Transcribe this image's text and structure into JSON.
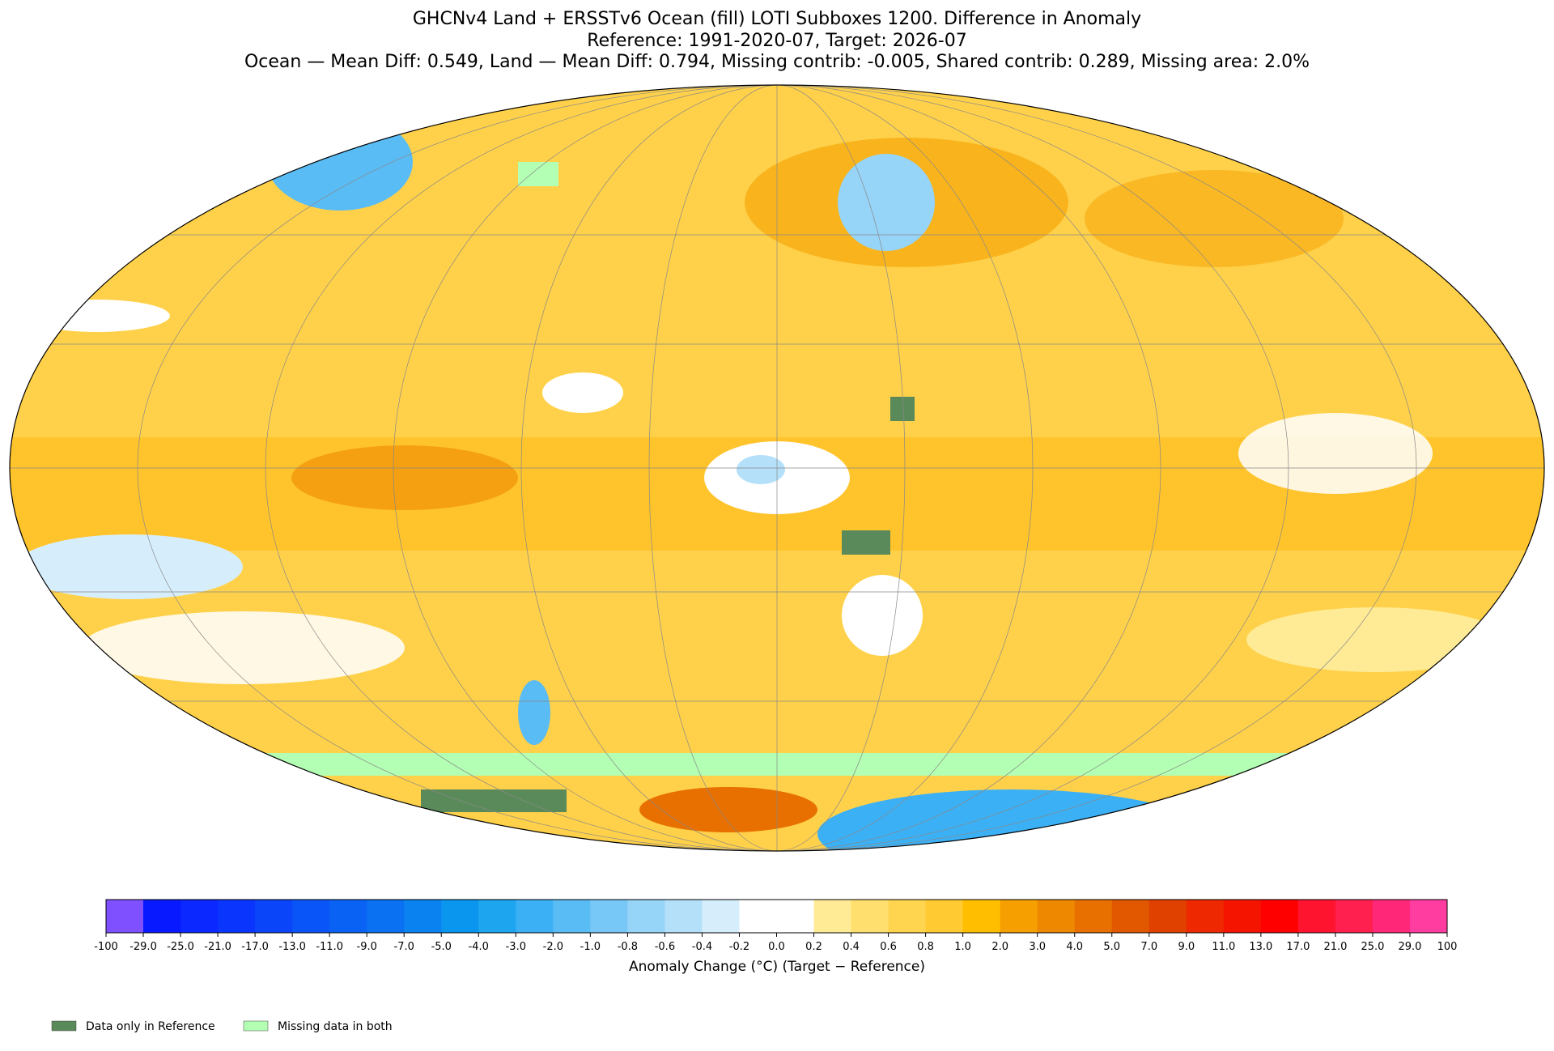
{
  "header": {
    "lines": [
      "GHCNv4 Land + ERSSTv6 Ocean (fill) LOTI Subboxes 1200. Difference in Anomaly",
      "Reference: 1991-2020-07, Target: 2026-07",
      "Ocean — Mean Diff: 0.549, Land — Mean Diff: 0.794, Missing contrib: -0.005, Shared contrib: 0.289, Missing area: 2.0%"
    ]
  },
  "colorbar": {
    "label": "Anomaly Change (°C) (Target − Reference)",
    "ticks": [
      "-100",
      "-29.0",
      "-25.0",
      "-21.0",
      "-17.0",
      "-13.0",
      "-11.0",
      "-9.0",
      "-7.0",
      "-5.0",
      "-4.0",
      "-3.0",
      "-2.0",
      "-1.0",
      "-0.8",
      "-0.6",
      "-0.4",
      "-0.2",
      "0.0",
      "0.2",
      "0.4",
      "0.6",
      "0.8",
      "1.0",
      "2.0",
      "3.0",
      "4.0",
      "5.0",
      "7.0",
      "9.0",
      "11.0",
      "13.0",
      "17.0",
      "21.0",
      "25.0",
      "29.0",
      "100"
    ],
    "colors": [
      "#7f50ff",
      "#0818ff",
      "#0a28ff",
      "#0a35fc",
      "#0a45fa",
      "#0a55f8",
      "#0a62f5",
      "#0a72f2",
      "#0a82ef",
      "#0a95ee",
      "#1ea5f0",
      "#3cb0f5",
      "#5abcf5",
      "#78c8f7",
      "#96d4f8",
      "#b4e0fa",
      "#d6eefc",
      "#ffffff",
      "#ffffff",
      "#ffeb96",
      "#ffe06e",
      "#ffd550",
      "#ffca32",
      "#ffbf00",
      "#f5a000",
      "#ee8800",
      "#e87000",
      "#e25800",
      "#e04000",
      "#ee2800",
      "#f51400",
      "#ff0000",
      "#ff1430",
      "#ff2050",
      "#ff2878",
      "#ff3ca0"
    ]
  },
  "legend": [
    {
      "label": "Data only in Reference",
      "color": "#5a8a5a"
    },
    {
      "label": "Missing data in both",
      "color": "#b3ffb3"
    }
  ]
}
